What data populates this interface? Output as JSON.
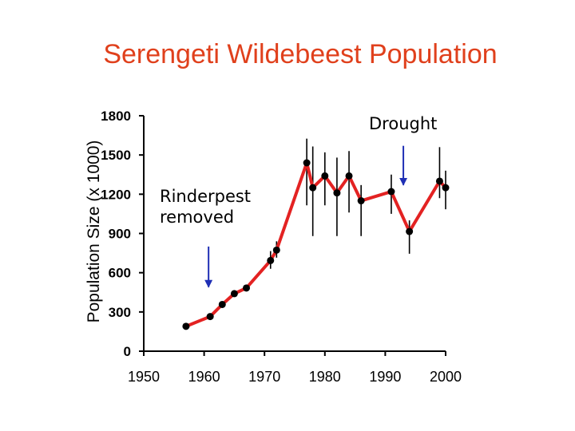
{
  "chart_data": {
    "type": "line",
    "title": "Serengeti Wildebeest Population",
    "xlabel": "",
    "ylabel": "Population Size (x 1000)",
    "xlim": [
      1950,
      2000
    ],
    "ylim": [
      0,
      1800
    ],
    "x_ticks": [
      "1950",
      "1960",
      "1970",
      "1980",
      "1990",
      "2000"
    ],
    "y_ticks": [
      "0",
      "300",
      "600",
      "900",
      "1200",
      "1500",
      "1800"
    ],
    "grid": false,
    "legend": "none",
    "series": [
      {
        "color": "#e32222",
        "points": [
          {
            "x": 1957,
            "y": 190
          },
          {
            "x": 1961,
            "y": 265
          },
          {
            "x": 1963,
            "y": 357
          },
          {
            "x": 1965,
            "y": 440
          },
          {
            "x": 1967,
            "y": 483
          },
          {
            "x": 1971,
            "y": 693,
            "low": 630,
            "high": 765
          },
          {
            "x": 1972,
            "y": 773,
            "low": 715,
            "high": 840
          },
          {
            "x": 1977,
            "y": 1440,
            "low": 1115,
            "high": 1625
          },
          {
            "x": 1978,
            "y": 1250,
            "low": 880,
            "high": 1565
          },
          {
            "x": 1980,
            "y": 1340,
            "low": 1115,
            "high": 1520
          },
          {
            "x": 1982,
            "y": 1210,
            "low": 880,
            "high": 1480
          },
          {
            "x": 1984,
            "y": 1340,
            "low": 1060,
            "high": 1530
          },
          {
            "x": 1986,
            "y": 1150,
            "low": 880,
            "high": 1270
          },
          {
            "x": 1991,
            "y": 1220,
            "low": 1050,
            "high": 1350
          },
          {
            "x": 1994,
            "y": 915,
            "low": 745,
            "high": 1000
          },
          {
            "x": 1999,
            "y": 1300,
            "low": 1170,
            "high": 1560
          },
          {
            "x": 2000,
            "y": 1250,
            "low": 1085,
            "high": 1380
          }
        ]
      }
    ],
    "annotations": [
      {
        "label": "Rinderpest removed",
        "lines": [
          "Rinderpest",
          "removed"
        ],
        "arrow_x": 1961,
        "arrow_from": 800,
        "arrow_to": 490
      },
      {
        "label": "Drought",
        "lines": [
          "Drought"
        ],
        "arrow_x": 1993,
        "arrow_from": 1570,
        "arrow_to": 1270
      }
    ]
  }
}
